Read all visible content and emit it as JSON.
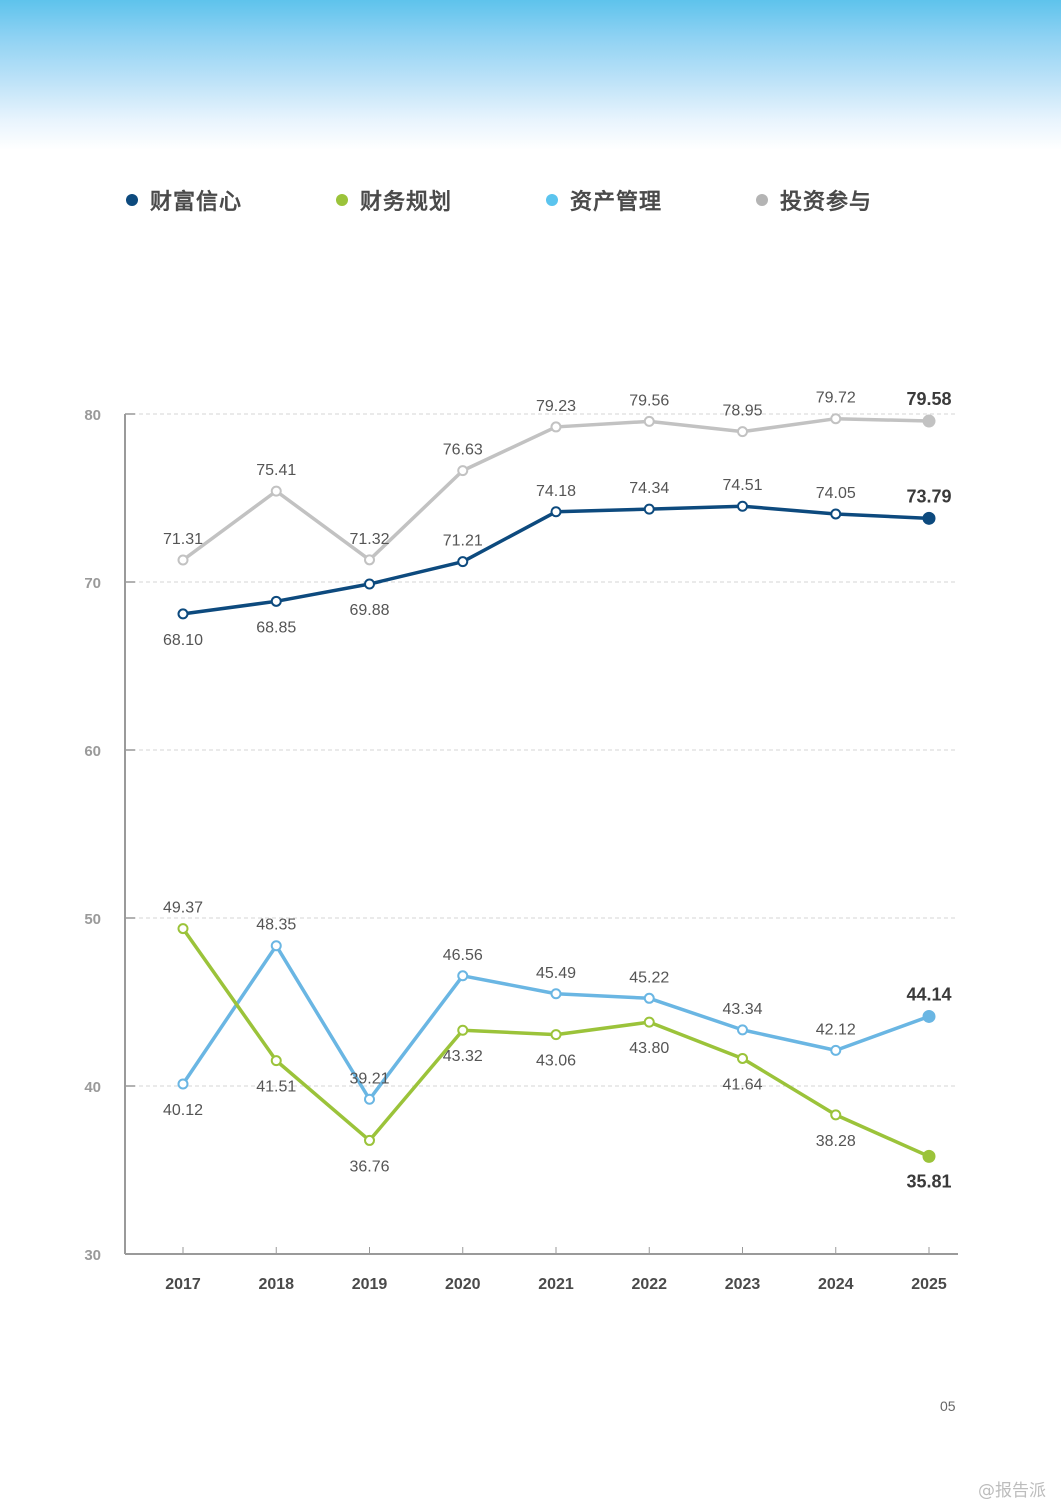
{
  "page": {
    "page_number": "05",
    "watermark": "@报告派"
  },
  "legend": [
    {
      "label": "财富信心",
      "color": "#0d4a7e"
    },
    {
      "label": "财务规划",
      "color": "#9bc33a"
    },
    {
      "label": "资产管理",
      "color": "#5bc4ee"
    },
    {
      "label": "投资参与",
      "color": "#b4b4b4"
    }
  ],
  "chart_data": {
    "type": "line",
    "title": "",
    "xlabel": "",
    "ylabel": "",
    "x": [
      "2017",
      "2018",
      "2019",
      "2020",
      "2021",
      "2022",
      "2023",
      "2024",
      "2025"
    ],
    "ylim": [
      30,
      80
    ],
    "yticks": [
      30,
      40,
      50,
      60,
      70,
      80
    ],
    "ytick_labels": [
      "30",
      "40",
      "50",
      "60",
      "70",
      "80"
    ],
    "grid": "horizontal-dashed",
    "legend_position": "top",
    "highlight_last_point": true,
    "series": [
      {
        "name": "投资参与",
        "color": "#c2c2c2",
        "label_color": "#b4b4b4",
        "values": [
          71.31,
          75.41,
          71.32,
          76.63,
          79.23,
          79.56,
          78.95,
          79.72,
          79.58
        ],
        "labels": [
          "71.31",
          "75.41",
          "71.32",
          "76.63",
          "79.23",
          "79.56",
          "78.95",
          "79.72",
          "79.58"
        ],
        "label_pos": [
          "above",
          "above",
          "above",
          "above",
          "above",
          "above",
          "above",
          "above",
          "above"
        ]
      },
      {
        "name": "财富信心",
        "color": "#0d4a7e",
        "label_color": "#0d4a7e",
        "values": [
          68.1,
          68.85,
          69.88,
          71.21,
          74.18,
          74.34,
          74.51,
          74.05,
          73.79
        ],
        "labels": [
          "68.10",
          "68.85",
          "69.88",
          "71.21",
          "74.18",
          "74.34",
          "74.51",
          "74.05",
          "73.79"
        ],
        "label_pos": [
          "below",
          "below",
          "below",
          "above",
          "above",
          "above",
          "above",
          "above",
          "above"
        ]
      },
      {
        "name": "资产管理",
        "color": "#6ab6e3",
        "label_color": "#5bc4ee",
        "values": [
          40.12,
          48.35,
          39.21,
          46.56,
          45.49,
          45.22,
          43.34,
          42.12,
          44.14
        ],
        "labels": [
          "40.12",
          "48.35",
          "39.21",
          "46.56",
          "45.49",
          "45.22",
          "43.34",
          "42.12",
          "44.14"
        ],
        "label_pos": [
          "below",
          "above",
          "above",
          "above",
          "above",
          "above",
          "above",
          "above",
          "above"
        ]
      },
      {
        "name": "财务规划",
        "color": "#9bc33a",
        "label_color": "#9bc33a",
        "values": [
          49.37,
          41.51,
          36.76,
          43.32,
          43.06,
          43.8,
          41.64,
          38.28,
          35.81
        ],
        "labels": [
          "49.37",
          "41.51",
          "36.76",
          "43.32",
          "43.06",
          "43.80",
          "41.64",
          "38.28",
          "35.81"
        ],
        "label_pos": [
          "above",
          "below",
          "below",
          "below",
          "below",
          "below",
          "below",
          "below",
          "below"
        ]
      }
    ]
  }
}
